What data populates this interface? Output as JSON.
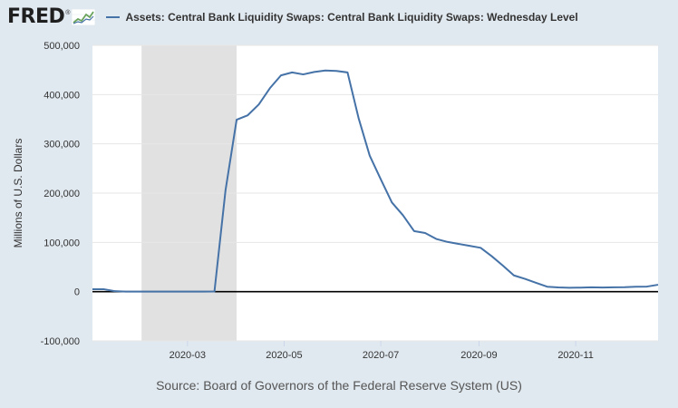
{
  "header": {
    "logo_text": "FRED",
    "logo_mark": "®",
    "logo_icon": "sparkline-chart-icon"
  },
  "source": {
    "text": "Source: Board of Governors of the Federal Reserve System (US)"
  },
  "colors": {
    "series": "#4572a7",
    "recession": "#e1e1e1",
    "background": "#e1e9f0",
    "plot_bg": "#ffffff",
    "gridline": "#e6e6e6",
    "zero_line": "#000000"
  },
  "chart_data": {
    "type": "line",
    "title": "Assets: Central Bank Liquidity Swaps: Central Bank Liquidity Swaps: Wednesday Level",
    "xlabel": "",
    "ylabel": "Millions of U.S. Dollars",
    "ylim": [
      -100000,
      500000
    ],
    "xlim": [
      "2020-01-01",
      "2020-12-23"
    ],
    "yticks": [
      -100000,
      0,
      100000,
      200000,
      300000,
      400000,
      500000
    ],
    "ytick_labels": [
      "-100,000",
      "0",
      "100,000",
      "200,000",
      "300,000",
      "400,000",
      "500,000"
    ],
    "xticks": [
      "2020-03-01",
      "2020-05-01",
      "2020-07-01",
      "2020-09-01",
      "2020-11-01"
    ],
    "xtick_labels": [
      "2020-03",
      "2020-05",
      "2020-07",
      "2020-09",
      "2020-11"
    ],
    "grid": true,
    "recession_shading": [
      {
        "start": "2020-02-01",
        "end": "2020-04-01"
      }
    ],
    "series": [
      {
        "name": "Assets: Central Bank Liquidity Swaps: Central Bank Liquidity Swaps: Wednesday Level",
        "points": [
          [
            "2020-01-01",
            5000
          ],
          [
            "2020-01-08",
            5000
          ],
          [
            "2020-01-15",
            1000
          ],
          [
            "2020-01-22",
            100
          ],
          [
            "2020-01-29",
            100
          ],
          [
            "2020-02-05",
            100
          ],
          [
            "2020-02-12",
            100
          ],
          [
            "2020-02-19",
            100
          ],
          [
            "2020-02-26",
            100
          ],
          [
            "2020-03-04",
            100
          ],
          [
            "2020-03-11",
            100
          ],
          [
            "2020-03-18",
            200
          ],
          [
            "2020-03-25",
            206000
          ],
          [
            "2020-04-01",
            349000
          ],
          [
            "2020-04-08",
            358000
          ],
          [
            "2020-04-15",
            380000
          ],
          [
            "2020-04-22",
            413000
          ],
          [
            "2020-04-29",
            439000
          ],
          [
            "2020-05-06",
            445000
          ],
          [
            "2020-05-13",
            441000
          ],
          [
            "2020-05-20",
            446000
          ],
          [
            "2020-05-27",
            449000
          ],
          [
            "2020-06-03",
            448000
          ],
          [
            "2020-06-10",
            445000
          ],
          [
            "2020-06-17",
            352000
          ],
          [
            "2020-06-24",
            276000
          ],
          [
            "2020-07-01",
            228000
          ],
          [
            "2020-07-08",
            181000
          ],
          [
            "2020-07-15",
            155000
          ],
          [
            "2020-07-22",
            123000
          ],
          [
            "2020-07-29",
            119000
          ],
          [
            "2020-08-05",
            107000
          ],
          [
            "2020-08-12",
            101000
          ],
          [
            "2020-08-19",
            97000
          ],
          [
            "2020-08-26",
            93000
          ],
          [
            "2020-09-02",
            89000
          ],
          [
            "2020-09-09",
            72000
          ],
          [
            "2020-09-16",
            53000
          ],
          [
            "2020-09-23",
            33000
          ],
          [
            "2020-09-30",
            26000
          ],
          [
            "2020-10-07",
            18000
          ],
          [
            "2020-10-14",
            10000
          ],
          [
            "2020-10-21",
            8500
          ],
          [
            "2020-10-28",
            8000
          ],
          [
            "2020-11-04",
            8200
          ],
          [
            "2020-11-11",
            8800
          ],
          [
            "2020-11-18",
            8300
          ],
          [
            "2020-11-25",
            8900
          ],
          [
            "2020-12-02",
            9000
          ],
          [
            "2020-12-09",
            10000
          ],
          [
            "2020-12-16",
            10300
          ],
          [
            "2020-12-23",
            14000
          ]
        ]
      }
    ]
  }
}
